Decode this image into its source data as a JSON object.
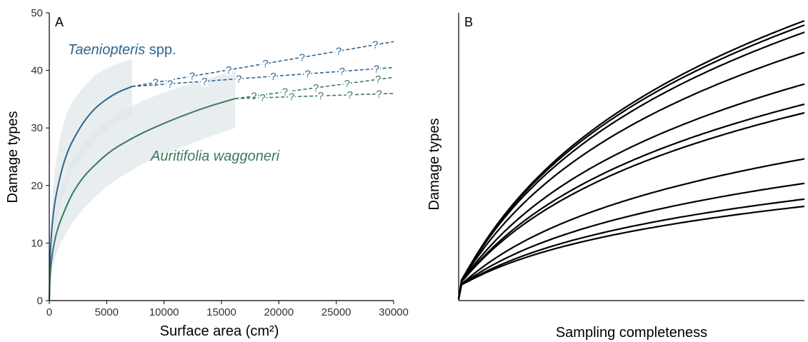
{
  "chart_data": [
    {
      "type": "line",
      "panel_label": "A",
      "xlabel": "Surface area (cm²)",
      "ylabel": "Damage types",
      "xlim": [
        0,
        30000
      ],
      "ylim": [
        0,
        50
      ],
      "x_ticks": [
        0,
        5000,
        10000,
        15000,
        20000,
        25000,
        30000
      ],
      "y_ticks": [
        0,
        10,
        20,
        30,
        40,
        50
      ],
      "grid": false,
      "extrapolation_marker": "?",
      "series": [
        {
          "name": "Taeniopteris",
          "name_suffix": "spp.",
          "color": "#2f6590",
          "x": [
            0,
            100,
            250,
            500,
            1000,
            1500,
            2000,
            3000,
            4000,
            5000,
            6000,
            7200
          ],
          "y": [
            0,
            8.5,
            13,
            17.2,
            22,
            25.3,
            27.6,
            31,
            33.4,
            35,
            36.2,
            37.2
          ],
          "band_upper": [
            0,
            12,
            18,
            23,
            29,
            32.5,
            34.5,
            37.2,
            39.2,
            40.4,
            41.2,
            42
          ],
          "band_lower": [
            0,
            6,
            9.5,
            12.5,
            17,
            20,
            22.3,
            25.4,
            27.8,
            29.6,
            31,
            32.2
          ],
          "extrapolations": [
            {
              "x": [
                7200,
                30000
              ],
              "y": [
                37.2,
                45
              ]
            },
            {
              "x": [
                7200,
                30000
              ],
              "y": [
                37.2,
                40.5
              ]
            }
          ]
        },
        {
          "name": "Auritifolia waggoneri",
          "color": "#3b7a5e",
          "x": [
            0,
            100,
            300,
            600,
            1000,
            2000,
            3000,
            4000,
            5000,
            6000,
            8000,
            10000,
            12000,
            14000,
            16200
          ],
          "y": [
            0,
            5,
            8.5,
            11.5,
            14,
            18.5,
            21.5,
            23.6,
            25.4,
            26.8,
            29,
            30.8,
            32.4,
            33.8,
            35.1
          ],
          "band_upper": [
            0,
            7,
            12,
            16,
            19.5,
            24.5,
            27.5,
            29.6,
            31.2,
            32.6,
            34.6,
            36.2,
            37.5,
            38.7,
            40
          ],
          "band_lower": [
            0,
            3.5,
            6,
            8,
            10,
            13.5,
            16,
            18,
            19.8,
            21.2,
            23.6,
            25.5,
            27,
            28.5,
            30
          ],
          "extrapolations": [
            {
              "x": [
                16200,
                30000
              ],
              "y": [
                35.1,
                38.8
              ]
            },
            {
              "x": [
                16200,
                30000
              ],
              "y": [
                35.1,
                36
              ]
            }
          ]
        }
      ]
    },
    {
      "type": "line",
      "panel_label": "B",
      "xlabel": "Sampling completeness",
      "ylabel": "Damage types",
      "x_ticks": [],
      "y_ticks": [],
      "grid": false,
      "xlim": [
        0,
        1
      ],
      "ylim": [
        0,
        1
      ],
      "line_color": "#000000",
      "x": [
        0,
        0.005,
        0.01,
        0.02,
        0.04,
        0.07,
        0.1,
        0.15,
        0.2,
        0.3,
        0.4,
        0.5,
        0.6,
        0.7,
        0.8,
        0.9,
        1
      ],
      "curve_ends": [
        0.9725,
        0.9575,
        0.9325,
        0.8625,
        0.7525,
        0.6825,
        0.6525,
        0.4925,
        0.4075,
        0.3525,
        0.3275
      ],
      "curve_starts": [
        0.055,
        0.055,
        0.055,
        0.055,
        0.055,
        0.055,
        0.055,
        0.05,
        0.05,
        0.05,
        0.05
      ]
    }
  ]
}
